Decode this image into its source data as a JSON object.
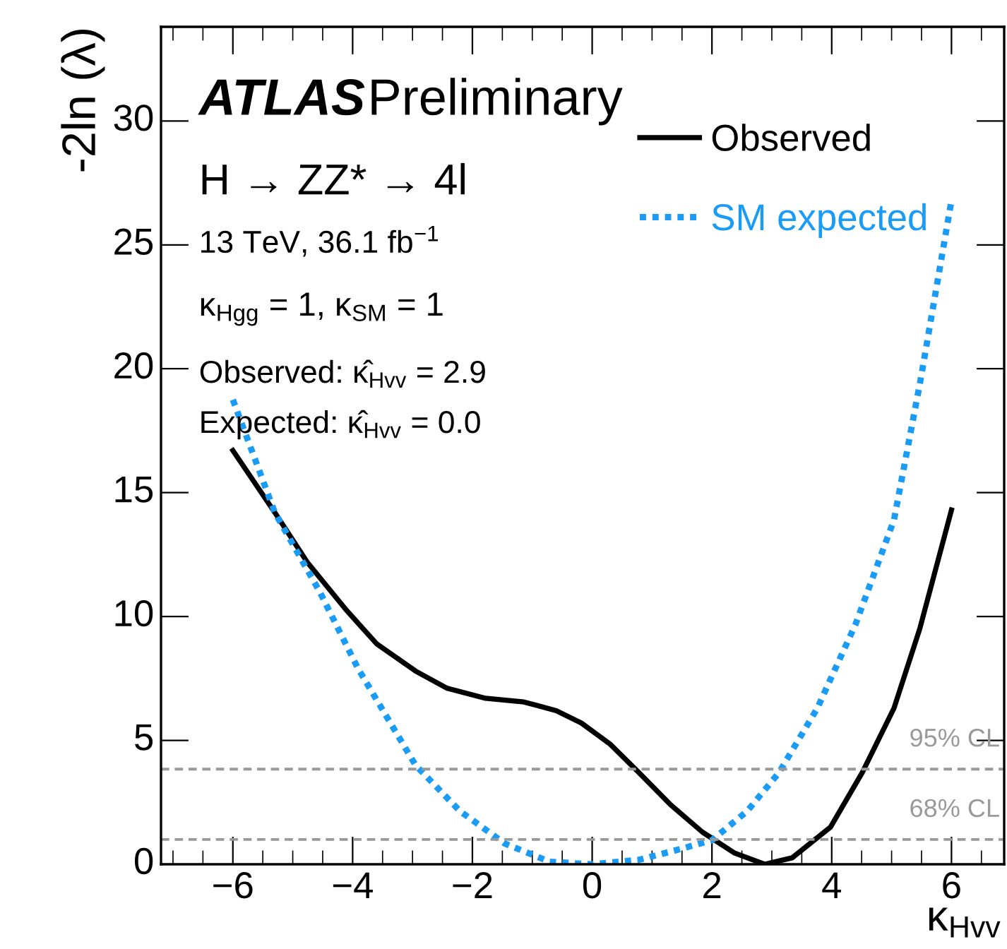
{
  "chart_data": {
    "type": "line",
    "xlabel": "κ$_{Hvv}$",
    "ylabel": "-2ln (λ)",
    "xlim": [
      -7.2,
      6.88
    ],
    "ylim": [
      0,
      33.8
    ],
    "xticks": [
      {
        "value": -6,
        "label": "−6"
      },
      {
        "value": -4,
        "label": "−4"
      },
      {
        "value": -2,
        "label": "−2"
      },
      0,
      2,
      4,
      6
    ],
    "yticks": [
      0,
      5,
      10,
      15,
      20,
      25,
      30
    ],
    "grid": false,
    "legend": "top right",
    "marker": "none",
    "series": [
      {
        "name": "Observed",
        "color": "#000000",
        "line_style": "solid",
        "x": [
          -6,
          -5.3,
          -4.76,
          -4.12,
          -3.6,
          -2.95,
          -2.42,
          -1.78,
          -1.14,
          -0.6,
          -0.18,
          0.3,
          0.78,
          1.31,
          1.84,
          2.38,
          2.88,
          3.34,
          3.98,
          4.51,
          5.04,
          5.47,
          6
        ],
        "values": [
          16.7,
          14.2,
          12.2,
          10.3,
          8.9,
          7.8,
          7.1,
          6.7,
          6.55,
          6.2,
          5.7,
          4.85,
          3.7,
          2.4,
          1.3,
          0.45,
          0,
          0.26,
          1.5,
          3.7,
          6.3,
          9.5,
          14.3
        ]
      },
      {
        "name": "SM expected",
        "color": "#1a9bf5",
        "line_style": "dotted",
        "x": [
          -6,
          -5.3,
          -4.55,
          -3.91,
          -2.95,
          -2.21,
          -1.46,
          -0.71,
          0,
          0.78,
          1.42,
          2.0,
          2.59,
          3.12,
          3.76,
          4.4,
          5.04,
          5.48,
          6
        ],
        "values": [
          18.75,
          14.2,
          11.0,
          7.9,
          4.0,
          2.15,
          0.84,
          0.1,
          0,
          0.18,
          0.58,
          0.97,
          2.15,
          3.7,
          6.3,
          9.7,
          13.9,
          19.5,
          26.8
        ]
      }
    ],
    "ref_lines": [
      {
        "axis": "y",
        "value": 3.84,
        "label": "95% CL",
        "color": "#999999",
        "line_style": "dashed"
      },
      {
        "axis": "y",
        "value": 1,
        "label": "68% CL",
        "color": "#999999",
        "line_style": "dashed"
      }
    ],
    "annotations": [
      "ATLAS",
      "Preliminary",
      "H → ZZ* → 4l",
      "13 TeV, 36.1 fb$^{−1}$",
      "κ$_{Hgg}$ = 1, κ$_{SM}$ = 1",
      "Observed: κ̂$_{Hvv}$ = 2.9",
      "Expected: κ̂$_{Hvv}$ = 0.0"
    ]
  }
}
